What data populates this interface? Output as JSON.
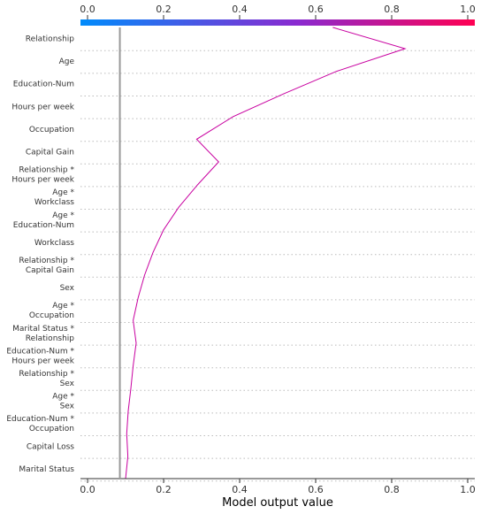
{
  "chart_data": {
    "type": "line",
    "xlabel": "Model output value",
    "xlim": [
      0.0,
      1.0
    ],
    "x_ticks": [
      "0.0",
      "0.2",
      "0.4",
      "0.6",
      "0.8",
      "1.0"
    ],
    "base_value": 0.085,
    "colorbar": {
      "low_color": "#008bfb",
      "high_color": "#ff0052",
      "range": [
        0.0,
        1.0
      ]
    },
    "line_color": "#c800a0",
    "grid_color": "#bbbbbb",
    "base_line_color": "#999999",
    "features": [
      {
        "label": [
          "Relationship"
        ],
        "value": 0.835
      },
      {
        "label": [
          "Age"
        ],
        "value": 0.655
      },
      {
        "label": [
          "Education-Num"
        ],
        "value": 0.515
      },
      {
        "label": [
          "Hours per week"
        ],
        "value": 0.383
      },
      {
        "label": [
          "Occupation"
        ],
        "value": 0.287
      },
      {
        "label": [
          "Capital Gain"
        ],
        "value": 0.345
      },
      {
        "label": [
          "Relationship *",
          "Hours per week"
        ],
        "value": 0.29
      },
      {
        "label": [
          "Age *",
          "Workclass"
        ],
        "value": 0.24
      },
      {
        "label": [
          "Age *",
          "Education-Num"
        ],
        "value": 0.2
      },
      {
        "label": [
          "Workclass"
        ],
        "value": 0.172
      },
      {
        "label": [
          "Relationship *",
          "Capital Gain"
        ],
        "value": 0.15
      },
      {
        "label": [
          "Sex"
        ],
        "value": 0.133
      },
      {
        "label": [
          "Age *",
          "Occupation"
        ],
        "value": 0.12
      },
      {
        "label": [
          "Marital Status *",
          "Relationship"
        ],
        "value": 0.128
      },
      {
        "label": [
          "Education-Num *",
          "Hours per week"
        ],
        "value": 0.12
      },
      {
        "label": [
          "Relationship *",
          "Sex"
        ],
        "value": 0.114
      },
      {
        "label": [
          "Age *",
          "Sex"
        ],
        "value": 0.107
      },
      {
        "label": [
          "Education-Num *",
          "Occupation"
        ],
        "value": 0.103
      },
      {
        "label": [
          "Capital Loss"
        ],
        "value": 0.106
      },
      {
        "label": [
          "Marital Status"
        ],
        "value": 0.1
      }
    ],
    "top_value": 0.645
  }
}
